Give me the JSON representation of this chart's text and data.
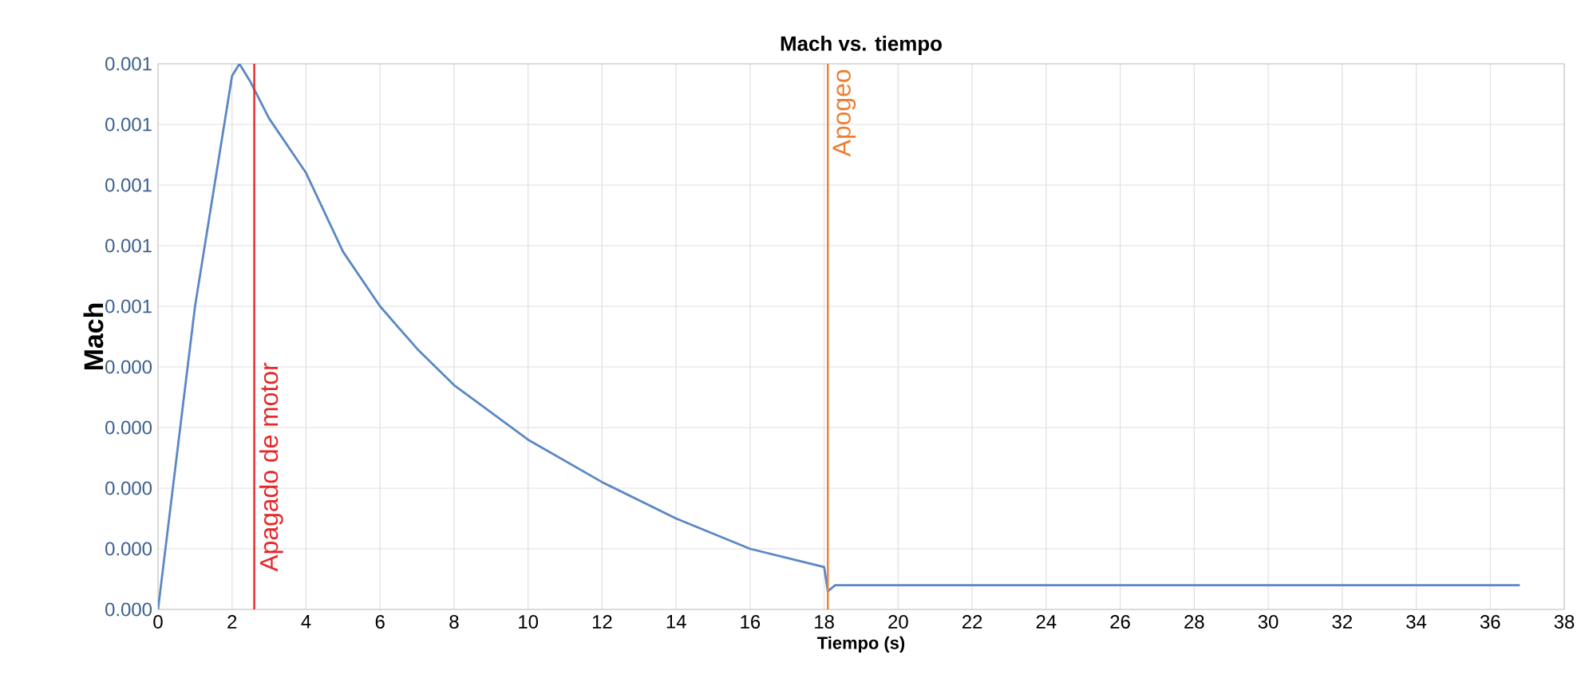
{
  "chart_data": {
    "type": "line",
    "title": "Mach vs. tiempo",
    "xlabel": "Tiempo (s)",
    "ylabel": "Mach",
    "x": [
      0,
      1,
      2,
      2.2,
      2.5,
      3,
      4,
      5,
      6,
      7,
      8,
      10,
      12,
      14,
      16,
      18,
      18.1,
      18.3,
      20,
      25,
      30,
      36.8
    ],
    "series": [
      {
        "color": "#5b87c5",
        "values": [
          0,
          0.0005,
          0.00088,
          0.0009,
          0.00087,
          0.00081,
          0.00072,
          0.00059,
          0.0005,
          0.00043,
          0.00037,
          0.00028,
          0.00021,
          0.00015,
          0.0001,
          7e-05,
          3e-05,
          4e-05,
          4e-05,
          4e-05,
          4e-05,
          4e-05
        ]
      }
    ],
    "xlim": [
      0,
      38
    ],
    "xticks": [
      0,
      2,
      4,
      6,
      8,
      10,
      12,
      14,
      16,
      18,
      20,
      22,
      24,
      26,
      28,
      30,
      32,
      34,
      36,
      38
    ],
    "ylim": [
      0,
      0.0009
    ],
    "yticks": [
      {
        "value": 0,
        "label": "0.000"
      },
      {
        "value": 0.0001,
        "label": "0.000"
      },
      {
        "value": 0.0002,
        "label": "0.000"
      },
      {
        "value": 0.0003,
        "label": "0.000"
      },
      {
        "value": 0.0004,
        "label": "0.000"
      },
      {
        "value": 0.0005,
        "label": "0.001"
      },
      {
        "value": 0.0006,
        "label": "0.001"
      },
      {
        "value": 0.0007,
        "label": "0.001"
      },
      {
        "value": 0.0008,
        "label": "0.001"
      },
      {
        "value": 0.0009,
        "label": "0.001"
      }
    ],
    "grid": true,
    "marker": "none",
    "line_style": "solid",
    "ref_lines": [
      {
        "axis": "x",
        "value": 2.6,
        "label": "Apagado de motor",
        "color": "#e8262a"
      },
      {
        "axis": "x",
        "value": 18.1,
        "label": "Apogeo",
        "color": "#ed7d31"
      }
    ]
  }
}
